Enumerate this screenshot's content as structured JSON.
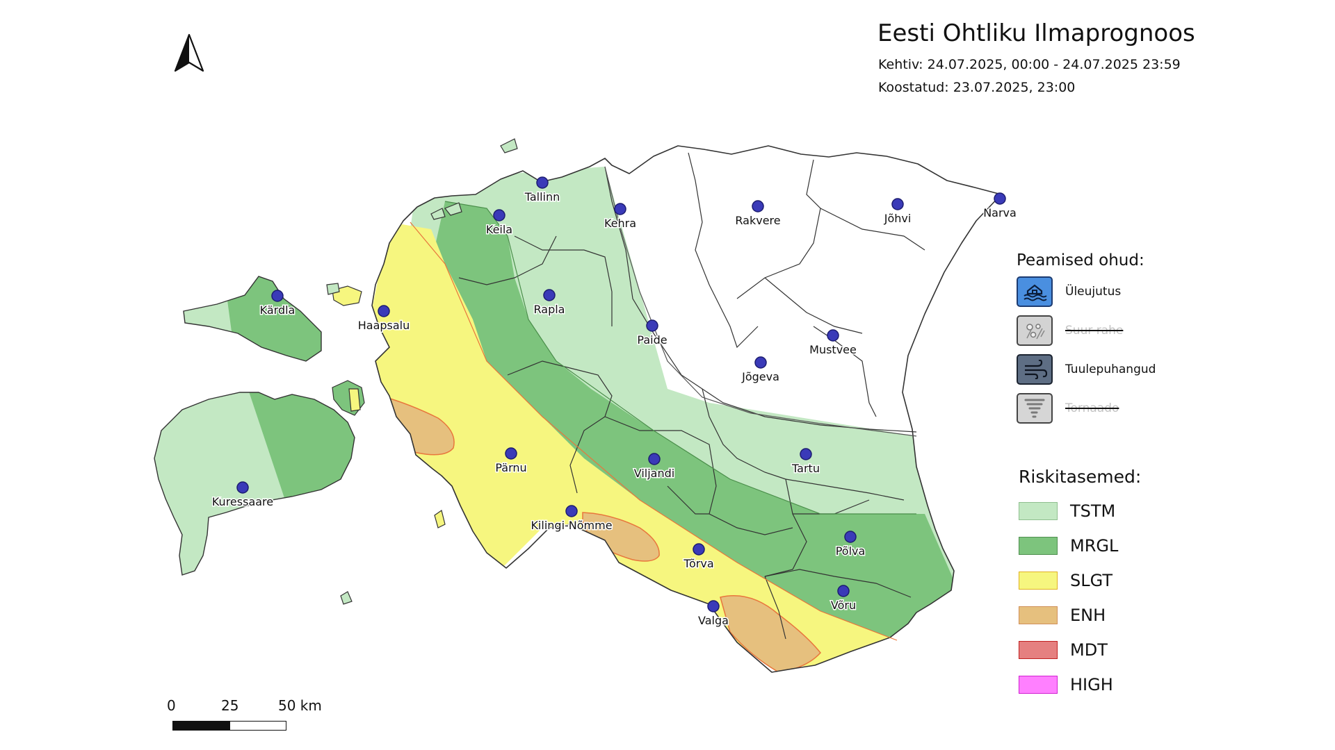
{
  "title": "Eesti Ohtliku Ilmaprognoos",
  "valid": "Kehtiv: 24.07.2025, 00:00 - 24.07.2025 23:59",
  "issued": "Koostatud: 23.07.2025, 23:00",
  "hazards": {
    "heading": "Peamised ohud:",
    "items": [
      {
        "label": "Üleujutus",
        "icon": "flood-icon",
        "active": true
      },
      {
        "label": "Suur rahe",
        "icon": "hail-icon",
        "active": false
      },
      {
        "label": "Tuulepuhangud",
        "icon": "wind-gust-icon",
        "active": true
      },
      {
        "label": "Tornaado",
        "icon": "tornado-icon",
        "active": false
      }
    ]
  },
  "risk": {
    "heading": "Riskitasemed:",
    "levels": [
      {
        "label": "TSTM",
        "color": "#c3e8c3"
      },
      {
        "label": "MRGL",
        "color": "#7dc47d"
      },
      {
        "label": "SLGT",
        "color": "#f6f67f"
      },
      {
        "label": "ENH",
        "color": "#e6c07e"
      },
      {
        "label": "MDT",
        "color": "#e58080"
      },
      {
        "label": "HIGH",
        "color": "#ff80ff"
      }
    ]
  },
  "scale": {
    "labels": [
      "0",
      "25",
      "50 km"
    ]
  },
  "cities": [
    "Tallinn",
    "Keila",
    "Kehra",
    "Rakvere",
    "Jõhvi",
    "Narva",
    "Kärdla",
    "Haapsalu",
    "Rapla",
    "Paide",
    "Jõgeva",
    "Mustvee",
    "Pärnu",
    "Viljandi",
    "Tartu",
    "Kuressaare",
    "Kilingi-Nõmme",
    "Tõrva",
    "Põlva",
    "Valga",
    "Võru"
  ],
  "colors": {
    "land_outline": "#333333",
    "city_dot": "#3a3ab8",
    "city_dot_stroke": "#1c1c70",
    "enh_border": "#e8763c"
  }
}
